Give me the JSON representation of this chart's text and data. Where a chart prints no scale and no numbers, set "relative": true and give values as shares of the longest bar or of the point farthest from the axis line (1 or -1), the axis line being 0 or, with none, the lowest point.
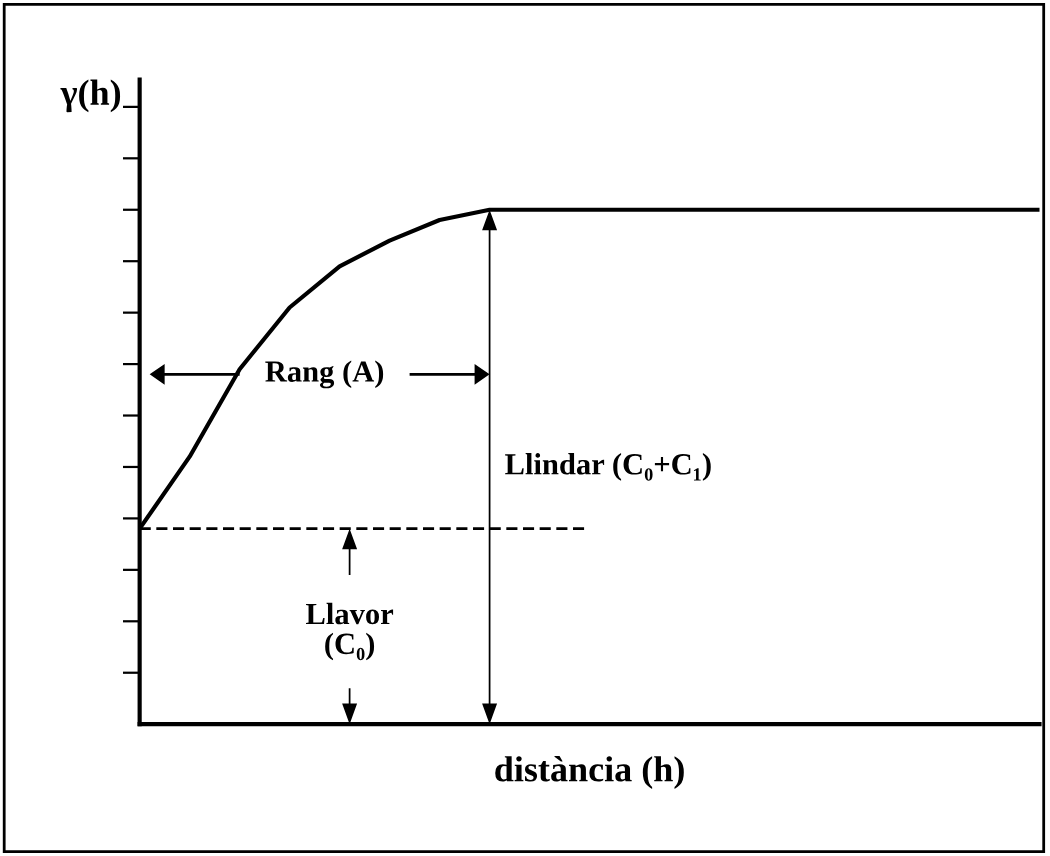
{
  "chart_data": {
    "type": "line",
    "relative": true,
    "xlabel": "distància (h)",
    "ylabel": "γ(h)",
    "categories": [
      null,
      null,
      null,
      null,
      null,
      null,
      null,
      null,
      null,
      null,
      null,
      null,
      null,
      null,
      null,
      null,
      null,
      null,
      null
    ],
    "series": [
      {
        "color": "#000000",
        "values": [
          0.38,
          0.52,
          0.69,
          0.81,
          0.89,
          0.94,
          0.98,
          1,
          1,
          1,
          1,
          1,
          1,
          1,
          1,
          1,
          1,
          1,
          1
        ]
      },
      {
        "color": "#000000",
        "line_style": "dashed",
        "values": [
          0.38,
          0.38,
          0.38,
          0.38,
          0.38,
          0.38,
          0.38,
          0.38,
          0.38,
          0.38,
          null,
          null,
          null,
          null,
          null,
          null,
          null,
          null,
          null
        ]
      }
    ],
    "annotations": [
      "Rang (A)",
      "Llindar (C₀+C₁)",
      "Llavor\n(C₀)"
    ],
    "grid": false,
    "legend": false,
    "marker": "none"
  }
}
